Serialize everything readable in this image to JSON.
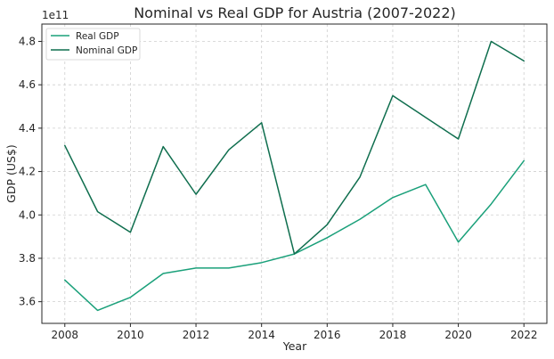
{
  "chart_data": {
    "type": "line",
    "title": "Nominal vs Real GDP for Austria (2007-2022)",
    "xlabel": "Year",
    "ylabel": "GDP (US$)",
    "y_offset_label": "1e11",
    "x": [
      2008,
      2009,
      2010,
      2011,
      2012,
      2013,
      2014,
      2015,
      2016,
      2017,
      2018,
      2019,
      2020,
      2021,
      2022
    ],
    "xlim": [
      2007.3,
      2022.7
    ],
    "ylim": [
      3.5,
      4.88
    ],
    "x_ticks": [
      2008,
      2010,
      2012,
      2014,
      2016,
      2018,
      2020,
      2022
    ],
    "x_tick_labels": [
      "2008",
      "2010",
      "2012",
      "2014",
      "2016",
      "2018",
      "2020",
      "2022"
    ],
    "y_ticks": [
      3.6,
      3.8,
      4.0,
      4.2,
      4.4,
      4.6,
      4.8
    ],
    "y_tick_labels": [
      "3.6",
      "3.8",
      "4.0",
      "4.2",
      "4.4",
      "4.6",
      "4.8"
    ],
    "grid": true,
    "legend_position": "top-left",
    "series": [
      {
        "name": "Real GDP",
        "color": "#1aa07a",
        "values": [
          3.7,
          3.56,
          3.62,
          3.73,
          3.755,
          3.755,
          3.78,
          3.82,
          3.895,
          3.98,
          4.08,
          4.14,
          3.875,
          4.05,
          4.25
        ]
      },
      {
        "name": "Nominal GDP",
        "color": "#0f6e4e",
        "values": [
          4.32,
          4.015,
          3.92,
          4.315,
          4.095,
          4.3,
          4.425,
          3.82,
          3.955,
          4.175,
          4.55,
          4.45,
          4.35,
          4.8,
          4.71
        ]
      }
    ]
  }
}
